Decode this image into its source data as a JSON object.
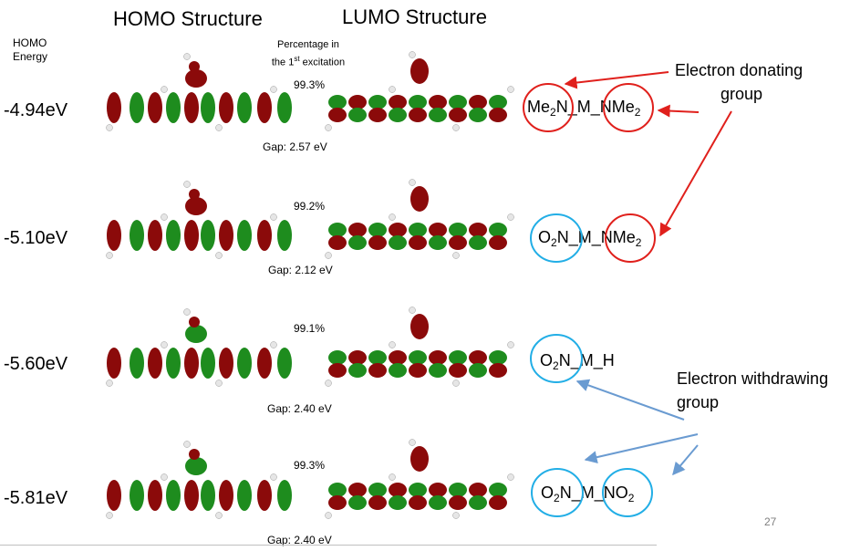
{
  "headers": {
    "homo_structure": "HOMO Structure",
    "lumo_structure": "LUMO Structure",
    "homo_energy": "HOMO Energy",
    "percentage_line1": "Percentage in",
    "percentage_line2_pre": "the 1",
    "percentage_line2_sup": "st",
    "percentage_line2_post": " excitation"
  },
  "rows": [
    {
      "energy": "-4.94eV",
      "percentage": "99.3%",
      "gap": "Gap: 2.57 eV",
      "formula": {
        "left_base": "Me",
        "left_sub": "2",
        "left_tail": "N",
        "middle": "_M_",
        "right_base": "NMe",
        "right_sub": "2",
        "right_tail": ""
      },
      "left_circle": "red",
      "right_circle": "red"
    },
    {
      "energy": "-5.10eV",
      "percentage": "99.2%",
      "gap": "Gap: 2.12 eV",
      "formula": {
        "left_base": "O",
        "left_sub": "2",
        "left_tail": "N",
        "middle": "_M_",
        "right_base": "NMe",
        "right_sub": "2",
        "right_tail": ""
      },
      "left_circle": "blue",
      "right_circle": "red"
    },
    {
      "energy": "-5.60eV",
      "percentage": "99.1%",
      "gap": "Gap: 2.40 eV",
      "formula": {
        "left_base": "O",
        "left_sub": "2",
        "left_tail": "N",
        "middle": "_M_H",
        "right_base": "",
        "right_sub": "",
        "right_tail": ""
      },
      "left_circle": "blue",
      "right_circle": "none"
    },
    {
      "energy": "-5.81eV",
      "percentage": "99.3%",
      "gap": "Gap: 2.40 eV",
      "formula": {
        "left_base": "O",
        "left_sub": "2",
        "left_tail": "N",
        "middle": "_M_",
        "right_base": "NO",
        "right_sub": "2",
        "right_tail": ""
      },
      "left_circle": "blue",
      "right_circle": "blue"
    }
  ],
  "annotations": {
    "donating_line1": "Electron donating",
    "donating_line2": "group",
    "withdrawing_line1": "Electron withdrawing",
    "withdrawing_line2": "group"
  },
  "page_number": "27",
  "colors": {
    "orbital_red": "#8b0a0a",
    "orbital_green": "#1e8c1e",
    "donor_red": "#e0201c",
    "acceptor_blue": "#22aee6",
    "arrow_red": "#e0201c",
    "arrow_blue": "#6a9bd1"
  }
}
